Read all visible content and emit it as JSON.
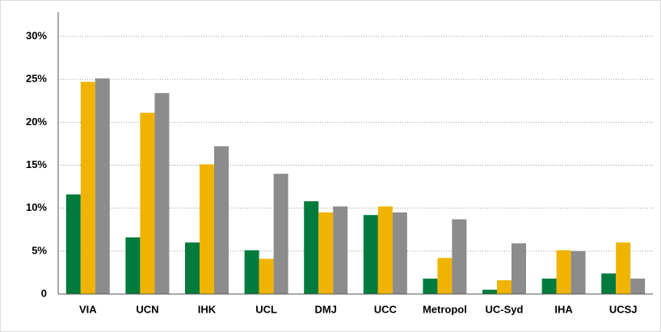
{
  "chart_data": {
    "type": "bar",
    "categories": [
      "VIA",
      "UCN",
      "IHK",
      "UCL",
      "DMJ",
      "UCC",
      "Metropol",
      "UC-Syd",
      "IHA",
      "UCSJ"
    ],
    "series": [
      {
        "color": "#007a3d",
        "values": [
          11.6,
          6.6,
          6.0,
          5.1,
          10.8,
          9.2,
          1.8,
          0.5,
          1.8,
          2.4
        ]
      },
      {
        "color": "#f0b400",
        "values": [
          24.7,
          21.1,
          15.1,
          4.1,
          9.5,
          10.2,
          4.2,
          1.6,
          5.1,
          6.0
        ]
      },
      {
        "color": "#8c8c8c",
        "values": [
          25.1,
          23.4,
          17.2,
          14.0,
          10.2,
          9.5,
          8.7,
          5.9,
          5.0,
          1.8
        ]
      }
    ],
    "ylim": [
      0,
      30
    ],
    "yticks": [
      0,
      {
        "value": 5,
        "label": "5%"
      },
      {
        "value": 10,
        "label": "10%"
      },
      {
        "value": 15,
        "label": "15%"
      },
      {
        "value": 20,
        "label": "20%"
      },
      {
        "value": 25,
        "label": "25%"
      },
      {
        "value": 30,
        "label": "30%"
      }
    ],
    "grid": true
  }
}
